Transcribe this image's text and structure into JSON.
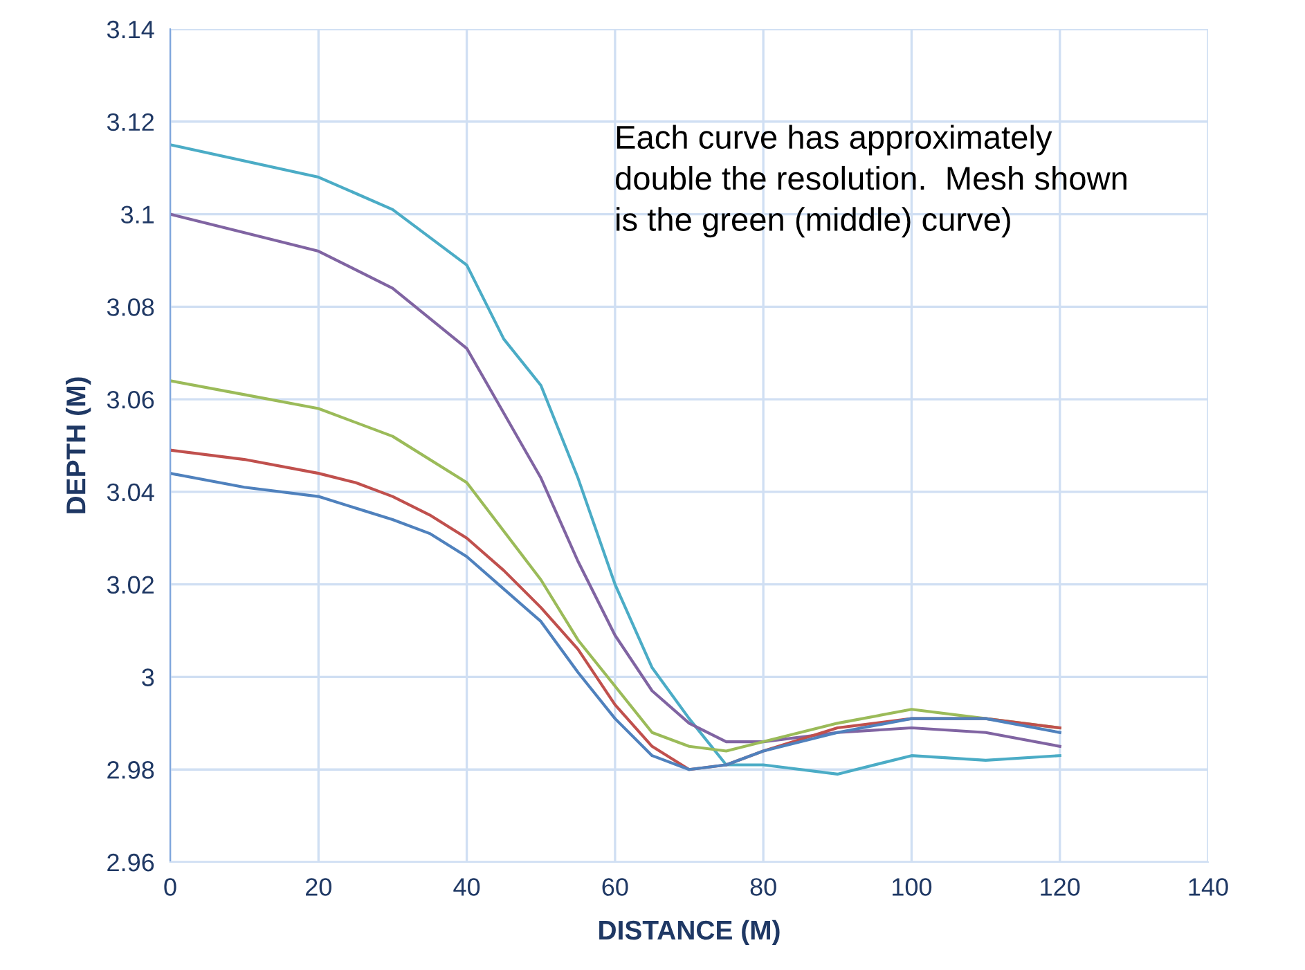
{
  "chart_data": {
    "type": "line",
    "xlabel": "DISTANCE (M)",
    "ylabel": "DEPTH (M)",
    "annotations": [
      "Each curve has approximately\ndouble the resolution.  Mesh shown\nis the green (middle) curve)"
    ],
    "xlim": [
      0,
      140
    ],
    "xticks": [
      0,
      20,
      40,
      60,
      80,
      100,
      120,
      140
    ],
    "ylim": [
      2.96,
      3.14
    ],
    "yticks": [
      {
        "value": 2.96,
        "label": "2.96"
      },
      {
        "value": 2.98,
        "label": "2.98"
      },
      {
        "value": 3.0,
        "label": "3"
      },
      {
        "value": 3.02,
        "label": "3.02"
      },
      {
        "value": 3.04,
        "label": "3.04"
      },
      {
        "value": 3.06,
        "label": "3.06"
      },
      {
        "value": 3.08,
        "label": "3.08"
      },
      {
        "value": 3.1,
        "label": "3.1"
      },
      {
        "value": 3.12,
        "label": "3.12"
      },
      {
        "value": 3.14,
        "label": "3.14"
      }
    ],
    "grid": true,
    "marker": "none",
    "line_style": "solid",
    "series": [
      {
        "color": "#4bacc6",
        "x": [
          0,
          20,
          30,
          40,
          45,
          50,
          55,
          60,
          65,
          70,
          75,
          80,
          90,
          100,
          110,
          120
        ],
        "values": [
          3.115,
          3.108,
          3.101,
          3.089,
          3.073,
          3.063,
          3.043,
          3.02,
          3.002,
          2.991,
          2.981,
          2.981,
          2.979,
          2.983,
          2.982,
          2.983
        ]
      },
      {
        "color": "#8064a2",
        "x": [
          0,
          10,
          20,
          30,
          40,
          50,
          55,
          60,
          65,
          70,
          75,
          80,
          90,
          100,
          110,
          120
        ],
        "values": [
          3.1,
          3.096,
          3.092,
          3.084,
          3.071,
          3.043,
          3.025,
          3.009,
          2.997,
          2.99,
          2.986,
          2.986,
          2.988,
          2.989,
          2.988,
          2.985
        ]
      },
      {
        "color": "#9bbb59",
        "x": [
          0,
          10,
          20,
          30,
          40,
          50,
          55,
          60,
          65,
          70,
          75,
          80,
          90,
          100,
          110,
          120
        ],
        "values": [
          3.064,
          3.061,
          3.058,
          3.052,
          3.042,
          3.021,
          3.008,
          2.998,
          2.988,
          2.985,
          2.984,
          2.986,
          2.99,
          2.993,
          2.991,
          2.989
        ]
      },
      {
        "color": "#c0504d",
        "x": [
          0,
          10,
          20,
          25,
          30,
          35,
          40,
          45,
          50,
          55,
          60,
          65,
          70,
          75,
          80,
          90,
          100,
          110,
          120
        ],
        "values": [
          3.049,
          3.047,
          3.044,
          3.042,
          3.039,
          3.035,
          3.03,
          3.023,
          3.015,
          3.006,
          2.994,
          2.985,
          2.98,
          2.981,
          2.984,
          2.989,
          2.991,
          2.991,
          2.989
        ]
      },
      {
        "color": "#4f81bd",
        "x": [
          0,
          10,
          20,
          30,
          35,
          40,
          45,
          50,
          55,
          60,
          65,
          70,
          75,
          80,
          90,
          100,
          110,
          120
        ],
        "values": [
          3.044,
          3.041,
          3.039,
          3.034,
          3.031,
          3.026,
          3.019,
          3.012,
          3.001,
          2.991,
          2.983,
          2.98,
          2.981,
          2.984,
          2.988,
          2.991,
          2.991,
          2.988
        ]
      }
    ]
  }
}
